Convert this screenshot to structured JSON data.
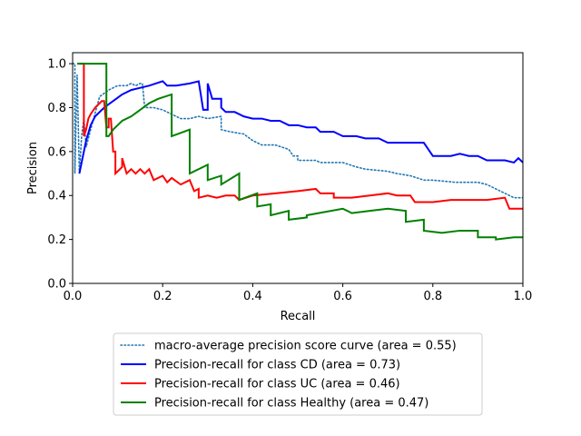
{
  "chart_data": {
    "type": "line",
    "title": "",
    "xlabel": "Recall",
    "ylabel": "Precision",
    "xlim": [
      0.0,
      1.0
    ],
    "ylim": [
      0.0,
      1.05
    ],
    "xticks": [
      "0.0",
      "0.2",
      "0.4",
      "0.6",
      "0.8",
      "1.0"
    ],
    "yticks": [
      "0.0",
      "0.2",
      "0.4",
      "0.6",
      "0.8",
      "1.0"
    ],
    "grid": false,
    "legend_position": "bottom-center",
    "series": [
      {
        "name": "macro-average precision score curve (area = 0.55)",
        "color": "#1f77b4",
        "style": "dotted",
        "points": [
          [
            0.0,
            1.0
          ],
          [
            0.005,
            1.0
          ],
          [
            0.005,
            0.5
          ],
          [
            0.01,
            0.95
          ],
          [
            0.015,
            0.5
          ],
          [
            0.02,
            0.67
          ],
          [
            0.025,
            0.75
          ],
          [
            0.03,
            0.62
          ],
          [
            0.04,
            0.7
          ],
          [
            0.06,
            0.85
          ],
          [
            0.08,
            0.88
          ],
          [
            0.1,
            0.9
          ],
          [
            0.12,
            0.9
          ],
          [
            0.13,
            0.91
          ],
          [
            0.14,
            0.9
          ],
          [
            0.15,
            0.91
          ],
          [
            0.155,
            0.91
          ],
          [
            0.16,
            0.8
          ],
          [
            0.18,
            0.8
          ],
          [
            0.2,
            0.79
          ],
          [
            0.22,
            0.77
          ],
          [
            0.24,
            0.75
          ],
          [
            0.26,
            0.75
          ],
          [
            0.28,
            0.76
          ],
          [
            0.3,
            0.75
          ],
          [
            0.33,
            0.76
          ],
          [
            0.33,
            0.7
          ],
          [
            0.35,
            0.69
          ],
          [
            0.38,
            0.68
          ],
          [
            0.4,
            0.65
          ],
          [
            0.42,
            0.63
          ],
          [
            0.45,
            0.63
          ],
          [
            0.48,
            0.61
          ],
          [
            0.49,
            0.58
          ],
          [
            0.5,
            0.58
          ],
          [
            0.5,
            0.56
          ],
          [
            0.54,
            0.56
          ],
          [
            0.55,
            0.55
          ],
          [
            0.6,
            0.55
          ],
          [
            0.63,
            0.53
          ],
          [
            0.65,
            0.52
          ],
          [
            0.7,
            0.51
          ],
          [
            0.72,
            0.5
          ],
          [
            0.75,
            0.49
          ],
          [
            0.78,
            0.47
          ],
          [
            0.8,
            0.47
          ],
          [
            0.85,
            0.46
          ],
          [
            0.88,
            0.46
          ],
          [
            0.9,
            0.46
          ],
          [
            0.92,
            0.45
          ],
          [
            0.94,
            0.43
          ],
          [
            0.96,
            0.41
          ],
          [
            0.98,
            0.39
          ],
          [
            1.0,
            0.39
          ]
        ]
      },
      {
        "name": "Precision-recall for class CD (area = 0.73)",
        "color": "#0000ff",
        "style": "solid",
        "points": [
          [
            0.015,
            0.5
          ],
          [
            0.02,
            0.55
          ],
          [
            0.03,
            0.65
          ],
          [
            0.04,
            0.72
          ],
          [
            0.05,
            0.76
          ],
          [
            0.07,
            0.8
          ],
          [
            0.09,
            0.83
          ],
          [
            0.11,
            0.86
          ],
          [
            0.13,
            0.88
          ],
          [
            0.15,
            0.89
          ],
          [
            0.17,
            0.9
          ],
          [
            0.2,
            0.92
          ],
          [
            0.21,
            0.9
          ],
          [
            0.23,
            0.9
          ],
          [
            0.26,
            0.91
          ],
          [
            0.28,
            0.92
          ],
          [
            0.29,
            0.79
          ],
          [
            0.3,
            0.79
          ],
          [
            0.3,
            0.91
          ],
          [
            0.31,
            0.84
          ],
          [
            0.33,
            0.84
          ],
          [
            0.33,
            0.8
          ],
          [
            0.34,
            0.78
          ],
          [
            0.36,
            0.78
          ],
          [
            0.38,
            0.76
          ],
          [
            0.4,
            0.75
          ],
          [
            0.42,
            0.75
          ],
          [
            0.44,
            0.74
          ],
          [
            0.46,
            0.74
          ],
          [
            0.48,
            0.72
          ],
          [
            0.5,
            0.72
          ],
          [
            0.52,
            0.71
          ],
          [
            0.54,
            0.71
          ],
          [
            0.55,
            0.69
          ],
          [
            0.58,
            0.69
          ],
          [
            0.6,
            0.67
          ],
          [
            0.63,
            0.67
          ],
          [
            0.65,
            0.66
          ],
          [
            0.68,
            0.66
          ],
          [
            0.7,
            0.64
          ],
          [
            0.73,
            0.64
          ],
          [
            0.78,
            0.64
          ],
          [
            0.79,
            0.61
          ],
          [
            0.8,
            0.58
          ],
          [
            0.82,
            0.58
          ],
          [
            0.84,
            0.58
          ],
          [
            0.86,
            0.59
          ],
          [
            0.88,
            0.58
          ],
          [
            0.9,
            0.58
          ],
          [
            0.92,
            0.56
          ],
          [
            0.94,
            0.56
          ],
          [
            0.96,
            0.56
          ],
          [
            0.98,
            0.55
          ],
          [
            0.99,
            0.57
          ],
          [
            1.0,
            0.55
          ]
        ]
      },
      {
        "name": "Precision-recall for class UC (area = 0.46)",
        "color": "#ff0000",
        "style": "solid",
        "points": [
          [
            0.015,
            1.0
          ],
          [
            0.025,
            1.0
          ],
          [
            0.025,
            0.67
          ],
          [
            0.03,
            0.7
          ],
          [
            0.035,
            0.75
          ],
          [
            0.04,
            0.77
          ],
          [
            0.05,
            0.8
          ],
          [
            0.06,
            0.82
          ],
          [
            0.065,
            0.83
          ],
          [
            0.07,
            0.83
          ],
          [
            0.075,
            0.71
          ],
          [
            0.08,
            0.71
          ],
          [
            0.08,
            0.75
          ],
          [
            0.085,
            0.75
          ],
          [
            0.09,
            0.6
          ],
          [
            0.095,
            0.6
          ],
          [
            0.095,
            0.5
          ],
          [
            0.11,
            0.53
          ],
          [
            0.11,
            0.57
          ],
          [
            0.12,
            0.5
          ],
          [
            0.13,
            0.52
          ],
          [
            0.14,
            0.5
          ],
          [
            0.15,
            0.52
          ],
          [
            0.16,
            0.5
          ],
          [
            0.17,
            0.52
          ],
          [
            0.18,
            0.47
          ],
          [
            0.2,
            0.49
          ],
          [
            0.21,
            0.46
          ],
          [
            0.22,
            0.48
          ],
          [
            0.24,
            0.45
          ],
          [
            0.26,
            0.47
          ],
          [
            0.27,
            0.42
          ],
          [
            0.28,
            0.43
          ],
          [
            0.28,
            0.39
          ],
          [
            0.3,
            0.4
          ],
          [
            0.32,
            0.39
          ],
          [
            0.34,
            0.4
          ],
          [
            0.36,
            0.4
          ],
          [
            0.37,
            0.38
          ],
          [
            0.4,
            0.4
          ],
          [
            0.45,
            0.41
          ],
          [
            0.5,
            0.42
          ],
          [
            0.54,
            0.43
          ],
          [
            0.55,
            0.41
          ],
          [
            0.58,
            0.41
          ],
          [
            0.58,
            0.39
          ],
          [
            0.62,
            0.39
          ],
          [
            0.66,
            0.4
          ],
          [
            0.7,
            0.41
          ],
          [
            0.72,
            0.4
          ],
          [
            0.75,
            0.4
          ],
          [
            0.76,
            0.37
          ],
          [
            0.8,
            0.37
          ],
          [
            0.84,
            0.38
          ],
          [
            0.88,
            0.38
          ],
          [
            0.92,
            0.38
          ],
          [
            0.96,
            0.39
          ],
          [
            0.97,
            0.34
          ],
          [
            1.0,
            0.34
          ]
        ]
      },
      {
        "name": "Precision-recall for class Healthy (area = 0.47)",
        "color": "#008000",
        "style": "solid",
        "points": [
          [
            0.01,
            1.0
          ],
          [
            0.075,
            1.0
          ],
          [
            0.075,
            0.67
          ],
          [
            0.08,
            0.67
          ],
          [
            0.09,
            0.7
          ],
          [
            0.1,
            0.72
          ],
          [
            0.11,
            0.74
          ],
          [
            0.13,
            0.76
          ],
          [
            0.15,
            0.79
          ],
          [
            0.17,
            0.82
          ],
          [
            0.19,
            0.84
          ],
          [
            0.22,
            0.86
          ],
          [
            0.22,
            0.67
          ],
          [
            0.26,
            0.7
          ],
          [
            0.26,
            0.5
          ],
          [
            0.3,
            0.54
          ],
          [
            0.3,
            0.47
          ],
          [
            0.33,
            0.49
          ],
          [
            0.33,
            0.45
          ],
          [
            0.37,
            0.5
          ],
          [
            0.37,
            0.38
          ],
          [
            0.41,
            0.41
          ],
          [
            0.41,
            0.35
          ],
          [
            0.44,
            0.36
          ],
          [
            0.44,
            0.31
          ],
          [
            0.48,
            0.33
          ],
          [
            0.48,
            0.29
          ],
          [
            0.52,
            0.3
          ],
          [
            0.52,
            0.31
          ],
          [
            0.6,
            0.34
          ],
          [
            0.62,
            0.32
          ],
          [
            0.66,
            0.33
          ],
          [
            0.7,
            0.34
          ],
          [
            0.74,
            0.33
          ],
          [
            0.74,
            0.28
          ],
          [
            0.78,
            0.29
          ],
          [
            0.78,
            0.24
          ],
          [
            0.82,
            0.23
          ],
          [
            0.86,
            0.24
          ],
          [
            0.9,
            0.24
          ],
          [
            0.9,
            0.21
          ],
          [
            0.94,
            0.21
          ],
          [
            0.94,
            0.2
          ],
          [
            0.98,
            0.21
          ],
          [
            1.0,
            0.21
          ]
        ]
      }
    ]
  }
}
